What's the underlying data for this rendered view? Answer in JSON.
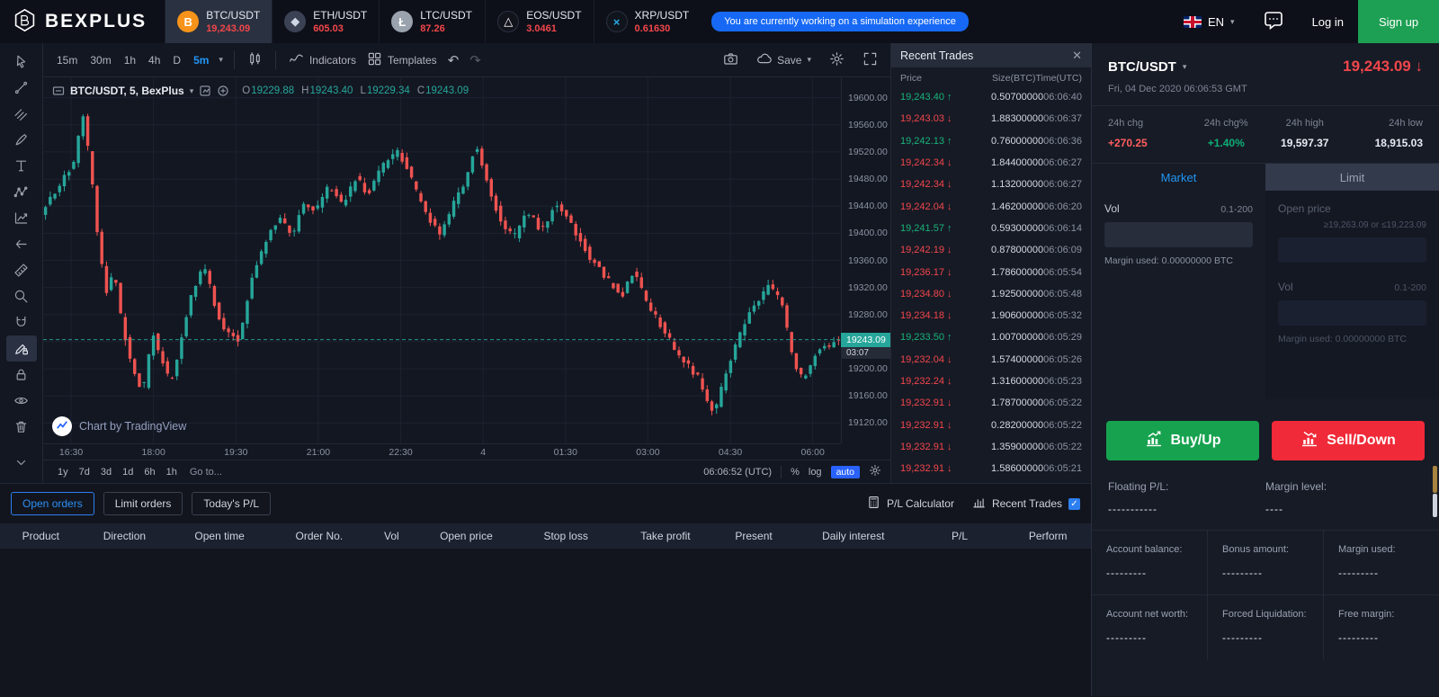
{
  "brand": {
    "name": "BEXPLUS"
  },
  "colors": {
    "up": "#26a69a",
    "down": "#ef5350",
    "red": "#f2464b",
    "green": "#0fae76",
    "blue": "#2196f3",
    "buy": "#17a24f",
    "sell": "#f02a38"
  },
  "header": {
    "tickers": [
      {
        "pair": "BTC/USDT",
        "price": "19,243.09",
        "icon": "btc",
        "active": true
      },
      {
        "pair": "ETH/USDT",
        "price": "605.03",
        "icon": "eth",
        "active": false
      },
      {
        "pair": "LTC/USDT",
        "price": "87.26",
        "icon": "ltc",
        "active": false
      },
      {
        "pair": "EOS/USDT",
        "price": "3.0461",
        "icon": "eos",
        "active": false
      },
      {
        "pair": "XRP/USDT",
        "price": "0.61630",
        "icon": "xrp",
        "active": false
      }
    ],
    "notice": "You are currently working on a simulation experience",
    "language": "EN",
    "login": "Log in",
    "signup": "Sign up"
  },
  "tools": {
    "items": [
      "cursor",
      "trend-line",
      "pitchfork",
      "brush",
      "text",
      "pattern",
      "forecast",
      "arrow-left",
      "measure",
      "zoom",
      "magnet",
      "draw-lock",
      "lock",
      "eye",
      "remove"
    ],
    "active_item": "draw-lock"
  },
  "chart": {
    "toolbar": {
      "timeframes": [
        "15m",
        "30m",
        "1h",
        "4h",
        "D"
      ],
      "active_timeframe": "5m",
      "indicators_label": "Indicators",
      "templates_label": "Templates",
      "save_label": "Save"
    },
    "legend": {
      "title": "BTC/USDT, 5, BexPlus",
      "items": [
        {
          "k": "O",
          "v": "19229.88"
        },
        {
          "k": "H",
          "v": "19243.40"
        },
        {
          "k": "L",
          "v": "19229.34"
        },
        {
          "k": "C",
          "v": "19243.09"
        }
      ]
    },
    "price_tag": {
      "price": "19243.09",
      "countdown": "03:07"
    },
    "bottom": {
      "ranges": [
        "1y",
        "7d",
        "3d",
        "1d",
        "6h",
        "1h"
      ],
      "goto_label": "Go to...",
      "clock": "06:06:52 (UTC)",
      "percent_label": "%",
      "log_label": "log",
      "auto_label": "auto"
    },
    "attribution": "Chart by TradingView"
  },
  "chart_data": {
    "type": "candlestick",
    "title": "BTC/USDT 5m",
    "x_labels": [
      "16:30",
      "18:00",
      "19:30",
      "21:00",
      "22:30",
      "4",
      "01:30",
      "03:00",
      "04:30",
      "06:00"
    ],
    "y_ticks": [
      19600,
      19560,
      19520,
      19480,
      19440,
      19400,
      19360,
      19320,
      19280,
      19240,
      19200,
      19160,
      19120
    ],
    "y_domain": [
      19090,
      19630
    ],
    "current_price": 19243.09,
    "ohlc_readout": {
      "open": 19229.88,
      "high": 19243.4,
      "low": 19229.34,
      "close": 19243.09
    },
    "candles_count": 170,
    "colors": {
      "up": "#26a69a",
      "down": "#ef5350"
    },
    "price_path": [
      [
        0,
        19430
      ],
      [
        0.02,
        19465
      ],
      [
        0.042,
        19505
      ],
      [
        0.052,
        19580
      ],
      [
        0.062,
        19500
      ],
      [
        0.072,
        19385
      ],
      [
        0.082,
        19312
      ],
      [
        0.092,
        19345
      ],
      [
        0.102,
        19262
      ],
      [
        0.115,
        19196
      ],
      [
        0.128,
        19166
      ],
      [
        0.14,
        19252
      ],
      [
        0.152,
        19212
      ],
      [
        0.163,
        19176
      ],
      [
        0.175,
        19242
      ],
      [
        0.19,
        19316
      ],
      [
        0.205,
        19352
      ],
      [
        0.218,
        19292
      ],
      [
        0.233,
        19252
      ],
      [
        0.248,
        19242
      ],
      [
        0.262,
        19322
      ],
      [
        0.28,
        19386
      ],
      [
        0.3,
        19422
      ],
      [
        0.315,
        19398
      ],
      [
        0.33,
        19446
      ],
      [
        0.345,
        19432
      ],
      [
        0.36,
        19468
      ],
      [
        0.378,
        19442
      ],
      [
        0.395,
        19482
      ],
      [
        0.41,
        19458
      ],
      [
        0.427,
        19498
      ],
      [
        0.448,
        19522
      ],
      [
        0.465,
        19478
      ],
      [
        0.482,
        19432
      ],
      [
        0.5,
        19396
      ],
      [
        0.517,
        19442
      ],
      [
        0.532,
        19478
      ],
      [
        0.545,
        19532
      ],
      [
        0.56,
        19472
      ],
      [
        0.576,
        19420
      ],
      [
        0.592,
        19392
      ],
      [
        0.61,
        19432
      ],
      [
        0.628,
        19402
      ],
      [
        0.643,
        19442
      ],
      [
        0.657,
        19430
      ],
      [
        0.672,
        19396
      ],
      [
        0.69,
        19362
      ],
      [
        0.71,
        19332
      ],
      [
        0.728,
        19306
      ],
      [
        0.743,
        19346
      ],
      [
        0.758,
        19302
      ],
      [
        0.773,
        19272
      ],
      [
        0.788,
        19242
      ],
      [
        0.806,
        19212
      ],
      [
        0.826,
        19184
      ],
      [
        0.843,
        19132
      ],
      [
        0.86,
        19198
      ],
      [
        0.878,
        19258
      ],
      [
        0.897,
        19300
      ],
      [
        0.913,
        19322
      ],
      [
        0.928,
        19302
      ],
      [
        0.943,
        19212
      ],
      [
        0.956,
        19182
      ],
      [
        0.97,
        19222
      ],
      [
        1,
        19243
      ]
    ]
  },
  "trades": {
    "title": "Recent Trades",
    "columns": [
      "Price",
      "Size(BTC)",
      "Time(UTC)"
    ],
    "rows": [
      {
        "price": "19,243.40",
        "dir": "up",
        "size": "0.50700000",
        "time": "06:06:40"
      },
      {
        "price": "19,243.03",
        "dir": "down",
        "size": "1.88300000",
        "time": "06:06:37"
      },
      {
        "price": "19,242.13",
        "dir": "up",
        "size": "0.76000000",
        "time": "06:06:36"
      },
      {
        "price": "19,242.34",
        "dir": "down",
        "size": "1.84400000",
        "time": "06:06:27"
      },
      {
        "price": "19,242.34",
        "dir": "down",
        "size": "1.13200000",
        "time": "06:06:27"
      },
      {
        "price": "19,242.04",
        "dir": "down",
        "size": "1.46200000",
        "time": "06:06:20"
      },
      {
        "price": "19,241.57",
        "dir": "up",
        "size": "0.59300000",
        "time": "06:06:14"
      },
      {
        "price": "19,242.19",
        "dir": "down",
        "size": "0.87800000",
        "time": "06:06:09"
      },
      {
        "price": "19,236.17",
        "dir": "down",
        "size": "1.78600000",
        "time": "06:05:54"
      },
      {
        "price": "19,234.80",
        "dir": "down",
        "size": "1.92500000",
        "time": "06:05:48"
      },
      {
        "price": "19,234.18",
        "dir": "down",
        "size": "1.90600000",
        "time": "06:05:32"
      },
      {
        "price": "19,233.50",
        "dir": "up",
        "size": "1.00700000",
        "time": "06:05:29"
      },
      {
        "price": "19,232.04",
        "dir": "down",
        "size": "1.57400000",
        "time": "06:05:26"
      },
      {
        "price": "19,232.24",
        "dir": "down",
        "size": "1.31600000",
        "time": "06:05:23"
      },
      {
        "price": "19,232.91",
        "dir": "down",
        "size": "1.78700000",
        "time": "06:05:22"
      },
      {
        "price": "19,232.91",
        "dir": "down",
        "size": "0.28200000",
        "time": "06:05:22"
      },
      {
        "price": "19,232.91",
        "dir": "down",
        "size": "1.35900000",
        "time": "06:05:22"
      },
      {
        "price": "19,232.91",
        "dir": "down",
        "size": "1.58600000",
        "time": "06:05:21"
      }
    ]
  },
  "side": {
    "pair": "BTC/USDT",
    "price": "19,243.09",
    "price_arrow": "↓",
    "datetime": "Fri, 04 Dec 2020 06:06:53 GMT",
    "stats": [
      {
        "label": "24h chg",
        "value": "+270.25",
        "tone": "red"
      },
      {
        "label": "24h chg%",
        "value": "+1.40%",
        "tone": "green"
      },
      {
        "label": "24h high",
        "value": "19,597.37",
        "tone": "plain"
      },
      {
        "label": "24h low",
        "value": "18,915.03",
        "tone": "plain"
      }
    ],
    "tabs": {
      "market": "Market",
      "limit": "Limit"
    },
    "market": {
      "vol_label": "Vol",
      "vol_range": "0.1-200",
      "margin_used": "Margin used: 0.00000000 BTC"
    },
    "limit": {
      "open_price_label": "Open price",
      "price_hint": "≥19,263.09 or ≤19,223.09",
      "vol_label": "Vol",
      "vol_range": "0.1-200",
      "margin_used": "Margin used: 0.00000000 BTC"
    },
    "buy_label": "Buy/Up",
    "sell_label": "Sell/Down",
    "floating_pl": {
      "label": "Floating P/L:",
      "value": "-----------"
    },
    "margin_level": {
      "label": "Margin level:",
      "value": "----"
    },
    "accounts_row1": [
      {
        "label": "Account balance:",
        "value": "---------"
      },
      {
        "label": "Bonus amount:",
        "value": "---------"
      },
      {
        "label": "Margin used:",
        "value": "---------"
      }
    ],
    "accounts_row2": [
      {
        "label": "Account net worth:",
        "value": "---------"
      },
      {
        "label": "Forced Liquidation:",
        "value": "---------"
      },
      {
        "label": "Free margin:",
        "value": "---------"
      }
    ]
  },
  "orders": {
    "tabs": [
      {
        "label": "Open orders",
        "active": true
      },
      {
        "label": "Limit orders",
        "active": false
      },
      {
        "label": "Today's P/L",
        "active": false
      }
    ],
    "pl_calculator": "P/L Calculator",
    "recent_trades_toggle": "Recent Trades",
    "columns": [
      "Product",
      "Direction",
      "Open time",
      "Order No.",
      "Vol",
      "Open price",
      "Stop loss",
      "Take profit",
      "Present",
      "Daily interest",
      "P/L",
      "Perform"
    ]
  }
}
